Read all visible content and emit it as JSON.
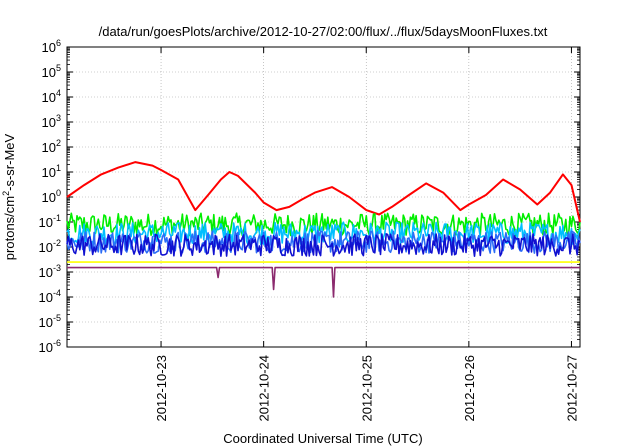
{
  "chart_data": {
    "type": "line",
    "title": "/data/run/goesPlots/archive/2012-10-27/02:00/flux/../flux/5daysMoonFluxes.txt",
    "xlabel": "Coordinated Universal Time (UTC)",
    "ylabel": {
      "prefix": "protons/cm",
      "sup": "2",
      "suffix": "-s-sr-MeV"
    },
    "yscale": "log",
    "ylim": [
      1e-06,
      1000000.0
    ],
    "xlim": [
      "2012-10-22 02:00",
      "2012-10-27 02:00"
    ],
    "grid": true,
    "x_ticks": [
      "2012-10-23",
      "2012-10-24",
      "2012-10-25",
      "2012-10-26",
      "2012-10-27"
    ],
    "y_ticks": [
      {
        "base": "10",
        "exp": "-6"
      },
      {
        "base": "10",
        "exp": "-5"
      },
      {
        "base": "10",
        "exp": "-4"
      },
      {
        "base": "10",
        "exp": "-3"
      },
      {
        "base": "10",
        "exp": "-2"
      },
      {
        "base": "10",
        "exp": "-1"
      },
      {
        "base": "10",
        "exp": "0"
      },
      {
        "base": "10",
        "exp": "1"
      },
      {
        "base": "10",
        "exp": "2"
      },
      {
        "base": "10",
        "exp": "3"
      },
      {
        "base": "10",
        "exp": "4"
      },
      {
        "base": "10",
        "exp": "5"
      },
      {
        "base": "10",
        "exp": "6"
      }
    ],
    "series": [
      {
        "color": "#ff0000",
        "x": [
          "2012-10-22 02:00",
          "2012-10-22 06:00",
          "2012-10-22 10:00",
          "2012-10-22 14:00",
          "2012-10-22 18:00",
          "2012-10-22 22:00",
          "2012-10-23 00:00",
          "2012-10-23 04:00",
          "2012-10-23 08:00",
          "2012-10-23 11:00",
          "2012-10-23 14:00",
          "2012-10-23 16:00",
          "2012-10-23 18:00",
          "2012-10-23 22:00",
          "2012-10-24 00:00",
          "2012-10-24 03:00",
          "2012-10-24 06:00",
          "2012-10-24 09:00",
          "2012-10-24 12:00",
          "2012-10-24 16:00",
          "2012-10-24 20:00",
          "2012-10-25 00:00",
          "2012-10-25 03:00",
          "2012-10-25 06:00",
          "2012-10-25 10:00",
          "2012-10-25 14:00",
          "2012-10-25 18:00",
          "2012-10-25 22:00",
          "2012-10-26 00:00",
          "2012-10-26 04:00",
          "2012-10-26 08:00",
          "2012-10-26 12:00",
          "2012-10-26 16:00",
          "2012-10-26 19:00",
          "2012-10-26 22:00",
          "2012-10-27 00:00",
          "2012-10-27 02:00"
        ],
        "y": [
          1.0,
          3.0,
          8.0,
          15.0,
          25.0,
          18.0,
          12.0,
          5.0,
          0.3,
          1.2,
          5.0,
          10.0,
          7.0,
          1.5,
          0.6,
          0.3,
          0.4,
          0.8,
          1.5,
          2.5,
          1.0,
          0.3,
          0.2,
          0.4,
          1.2,
          3.5,
          1.5,
          0.3,
          0.5,
          1.2,
          5.0,
          2.0,
          0.5,
          1.5,
          8.0,
          3.0,
          0.1
        ]
      },
      {
        "color": "#00ee00",
        "x": [
          "2012-10-22 02:00",
          "2012-10-27 02:00"
        ],
        "y": [
          0.08,
          0.08
        ],
        "noisy": true
      },
      {
        "color": "#00bfff",
        "x": [
          "2012-10-22 02:00",
          "2012-10-27 02:00"
        ],
        "y": [
          0.035,
          0.035
        ],
        "noisy": true
      },
      {
        "color": "#2b6cf7",
        "x": [
          "2012-10-22 02:00",
          "2012-10-27 02:00"
        ],
        "y": [
          0.016,
          0.016
        ],
        "noisy": true
      },
      {
        "color": "#1010d0",
        "x": [
          "2012-10-22 02:00",
          "2012-10-27 02:00"
        ],
        "y": [
          0.012,
          0.012
        ],
        "noisy": true
      },
      {
        "color": "#ffff00",
        "x": [
          "2012-10-22 02:00",
          "2012-10-27 02:00"
        ],
        "y": [
          0.0025,
          0.0025
        ]
      },
      {
        "color": "#8b2a6e",
        "x": [
          "2012-10-22 02:00",
          "2012-10-23 13:00",
          "2012-10-23 13:20",
          "2012-10-23 13:40",
          "2012-10-24 02:00",
          "2012-10-24 02:20",
          "2012-10-24 02:40",
          "2012-10-24 16:00",
          "2012-10-24 16:20",
          "2012-10-24 16:40",
          "2012-10-27 02:00"
        ],
        "y": [
          0.0015,
          0.0015,
          0.0006,
          0.0015,
          0.0015,
          0.0002,
          0.0015,
          0.0015,
          0.0001,
          0.0015,
          0.0015
        ]
      }
    ]
  }
}
